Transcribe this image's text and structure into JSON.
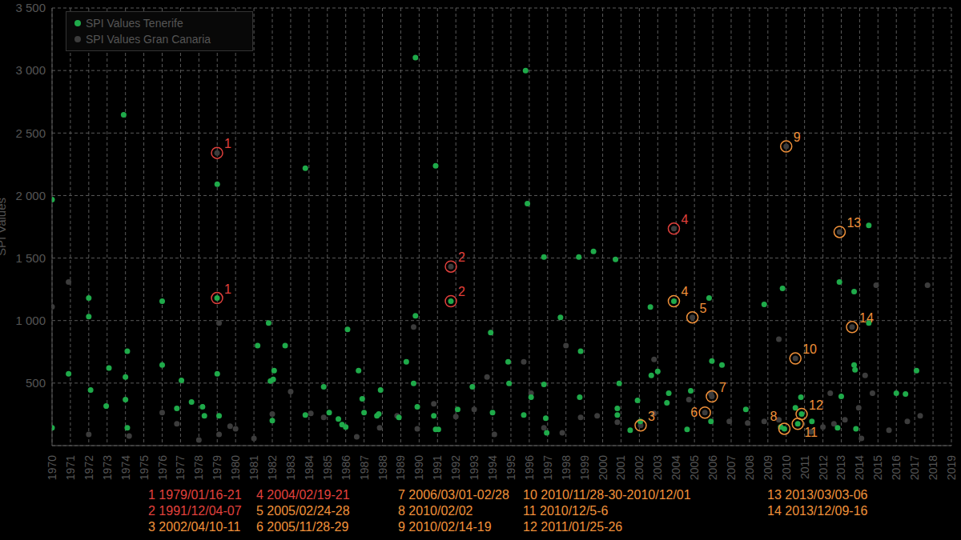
{
  "chart_data": {
    "type": "scatter",
    "y_label": "SPI Values",
    "xlim": [
      1970,
      2019
    ],
    "xticks": [
      1970,
      1971,
      1972,
      1973,
      1974,
      1975,
      1976,
      1977,
      1978,
      1979,
      1980,
      1981,
      1982,
      1983,
      1984,
      1985,
      1986,
      1987,
      1988,
      1989,
      1990,
      1991,
      1992,
      1993,
      1994,
      1995,
      1996,
      1997,
      1998,
      1999,
      2000,
      2001,
      2002,
      2003,
      2004,
      2005,
      2006,
      2007,
      2008,
      2009,
      2010,
      2011,
      2012,
      2013,
      2014,
      2015,
      2016,
      2017,
      2018,
      2019
    ],
    "ylim": [
      0,
      3500
    ],
    "yticks": [
      500,
      {
        "value": 1000,
        "label": "1 000"
      },
      {
        "value": 1500,
        "label": "1 500"
      },
      {
        "value": 2000,
        "label": "2 000"
      },
      {
        "value": 2500,
        "label": "2 500"
      },
      {
        "value": 3000,
        "label": "3 000"
      },
      {
        "value": 3500,
        "label": "3 500"
      }
    ],
    "grid": true,
    "legend": "upper left",
    "series": [
      {
        "name": "SPI Values Tenerife",
        "color": "#1faa4a",
        "marker": "circle",
        "x": [
          1970,
          1970,
          1970.9,
          1972,
          1972,
          1972.1,
          1972.95,
          1973.1,
          1973.9,
          1974,
          1974,
          1974.1,
          1974.1,
          1976,
          1976,
          1976.8,
          1977.05,
          1977.6,
          1978.2,
          1978.3,
          1979,
          1979,
          1979.1,
          1978.99,
          1981.2,
          1981.8,
          1981.9,
          1982.05,
          1982.1,
          1982,
          1982.7,
          1983.8,
          1983.8,
          1984.8,
          1985.1,
          1985.6,
          1985.8,
          1986.1,
          1986,
          1986.7,
          1986.9,
          1987,
          1987.7,
          1987.8,
          1987.9,
          1988.9,
          1989.3,
          1989.7,
          1989.8,
          1989.8,
          1989.9,
          1990.8,
          1990.9,
          1991.05,
          1990.9,
          1991.73,
          1992.1,
          1992.9,
          1993.9,
          1994,
          1994.9,
          1994.85,
          1995.8,
          1995.9,
          1995.7,
          1996.1,
          1996.8,
          1996.8,
          1996.9,
          1996.95,
          1997.7,
          1998.7,
          1998.8,
          1998.75,
          1999.5,
          2000.7,
          2000.9,
          2000.8,
          2000.8,
          2001.5,
          2001.9,
          2002.05,
          2002.65,
          2002.6,
          2003,
          2003.5,
          2003.6,
          2003.88,
          2004.6,
          2004.8,
          2005.8,
          2005.95,
          2006.5,
          2005.9,
          2007.8,
          2008.8,
          2009.8,
          2009.7,
          2009.9,
          2010.5,
          2010.63,
          2010.84,
          2010.8,
          2011.4,
          2012.9,
          2013,
          2012.8,
          2013.7,
          2013.7,
          2013.75,
          2013.8,
          2014.5,
          2014.5,
          2016,
          2016.5,
          2017.1
        ],
        "values": [
          142,
          1967,
          574,
          1180,
          1032,
          445,
          316,
          620,
          2645,
          548,
          368,
          755,
          142,
          1155,
          645,
          297,
          522,
          348,
          310,
          239,
          2090,
          574,
          239,
          1180,
          800,
          980,
          516,
          530,
          600,
          200,
          800,
          2219,
          245,
          471,
          264,
          213,
          168,
          929,
          148,
          600,
          374,
          264,
          239,
          252,
          445,
          226,
          671,
          497,
          3103,
          1038,
          310,
          239,
          129,
          129,
          2238,
          1155,
          290,
          471,
          903,
          264,
          497,
          671,
          3000,
          1935,
          245,
          387,
          1509,
          490,
          219,
          103,
          1025,
          1509,
          755,
          387,
          1554,
          1490,
          497,
          297,
          245,
          123,
          361,
          194,
          561,
          1109,
          593,
          342,
          419,
          1155,
          129,
          439,
          1180,
          677,
          645,
          194,
          290,
          1129,
          1258,
          148,
          135,
          303,
          174,
          252,
          387,
          194,
          1309,
          393,
          142,
          1232,
          645,
          606,
          135,
          1761,
          980,
          419,
          413,
          600
        ]
      },
      {
        "name": "SPI Values Gran Canaria",
        "color": "#3c3c3c",
        "marker": "circle",
        "x": [
          1970,
          1970.9,
          1972,
          1974.2,
          1976,
          1976.8,
          1978,
          1979.1,
          1979.1,
          1979.7,
          1980,
          1981,
          1982,
          1983,
          1984.1,
          1984.8,
          1986.6,
          1987.85,
          1988.8,
          1989.7,
          1989.9,
          1990.8,
          1992,
          1993,
          1993.7,
          1994.1,
          1995.7,
          1996.1,
          1996.8,
          1997.8,
          1998,
          1998.8,
          1999.7,
          2000.8,
          2002.8,
          2002.8,
          2004.7,
          2005.9,
          2006.9,
          2007.9,
          2008.8,
          2009.6,
          2009.6,
          2011.35,
          2012,
          2012.4,
          2012.6,
          2013.2,
          2013.95,
          2014.1,
          2014.3,
          2014.7,
          2014.9,
          2015.6,
          2016.6,
          2017.7,
          2017.3,
          1978.99,
          1991.73,
          2003.88,
          2004.89,
          2010,
          2010.5,
          2012.91,
          2013.59,
          2002.07,
          2005.57,
          2005.95
        ],
        "values": [
          1110,
          1309,
          90,
          77,
          264,
          174,
          45,
          980,
          90,
          155,
          135,
          58,
          252,
          432,
          258,
          226,
          71,
          142,
          239,
          948,
          135,
          335,
          232,
          290,
          548,
          90,
          671,
          419,
          142,
          103,
          800,
          226,
          239,
          187,
          690,
          258,
          368,
          413,
          194,
          181,
          194,
          851,
          206,
          110,
          148,
          419,
          174,
          206,
          303,
          58,
          561,
          419,
          1283,
          123,
          194,
          1283,
          239,
          2341,
          1432,
          1735,
          1026,
          2393,
          697,
          1709,
          948,
          161,
          264,
          393
        ]
      }
    ],
    "annotations": [
      {
        "number": "1",
        "x": 1978.99,
        "y": 2341,
        "color": "#e0403c"
      },
      {
        "number": "1",
        "x": 1978.99,
        "y": 1180,
        "color": "#e0403c"
      },
      {
        "number": "2",
        "x": 1991.73,
        "y": 1432,
        "color": "#e0403c"
      },
      {
        "number": "2",
        "x": 1991.73,
        "y": 1155,
        "color": "#e0403c"
      },
      {
        "number": "3",
        "x": 2002.07,
        "y": 161,
        "color": "#f0913a"
      },
      {
        "number": "4",
        "x": 2003.88,
        "y": 1735,
        "color": "#e0403c"
      },
      {
        "number": "4",
        "x": 2003.88,
        "y": 1155,
        "color": "#f0913a"
      },
      {
        "number": "5",
        "x": 2004.89,
        "y": 1026,
        "color": "#f0913a"
      },
      {
        "number": "6",
        "x": 2005.57,
        "y": 264,
        "color": "#f0913a"
      },
      {
        "number": "7",
        "x": 2005.95,
        "y": 393,
        "color": "#f0913a"
      },
      {
        "number": "8",
        "x": 2009.9,
        "y": 135,
        "color": "#f0913a"
      },
      {
        "number": "9",
        "x": 2010,
        "y": 2393,
        "color": "#f0913a"
      },
      {
        "number": "10",
        "x": 2010.5,
        "y": 697,
        "color": "#f0913a"
      },
      {
        "number": "11",
        "x": 2010.63,
        "y": 174,
        "color": "#f0913a"
      },
      {
        "number": "12",
        "x": 2010.84,
        "y": 252,
        "color": "#f0913a"
      },
      {
        "number": "13",
        "x": 2012.91,
        "y": 1709,
        "color": "#f0913a"
      },
      {
        "number": "14",
        "x": 2013.59,
        "y": 948,
        "color": "#f0913a"
      }
    ],
    "event_notes": [
      {
        "number": "1",
        "dates": "1979/01/16-21",
        "color": "#e0403c"
      },
      {
        "number": "2",
        "dates": "1991/12/04-07",
        "color": "#e0403c"
      },
      {
        "number": "3",
        "dates": "2002/04/10-11",
        "color": "#f0913a"
      },
      {
        "number": "4",
        "dates": "2004/02/19-21",
        "color": "#e0403c"
      },
      {
        "number": "5",
        "dates": "2005/02/24-28",
        "color": "#f0913a"
      },
      {
        "number": "6",
        "dates": "2005/11/28-29",
        "color": "#f0913a"
      },
      {
        "number": "7",
        "dates": "2006/03/01-02/28",
        "color": "#f0913a"
      },
      {
        "number": "8",
        "dates": "2010/02/02",
        "color": "#f0913a"
      },
      {
        "number": "9",
        "dates": "2010/02/14-19",
        "color": "#f0913a"
      },
      {
        "number": "10",
        "dates": "2010/11/28-30-2010/12/01",
        "color": "#f0913a"
      },
      {
        "number": "11",
        "dates": "2010/12/5-6",
        "color": "#f0913a"
      },
      {
        "number": "12",
        "dates": "2011/01/25-26",
        "color": "#f0913a"
      },
      {
        "number": "13",
        "dates": "2013/03/03-06",
        "color": "#f0913a"
      },
      {
        "number": "14",
        "dates": "2013/12/09-16",
        "color": "#f0913a"
      }
    ]
  }
}
